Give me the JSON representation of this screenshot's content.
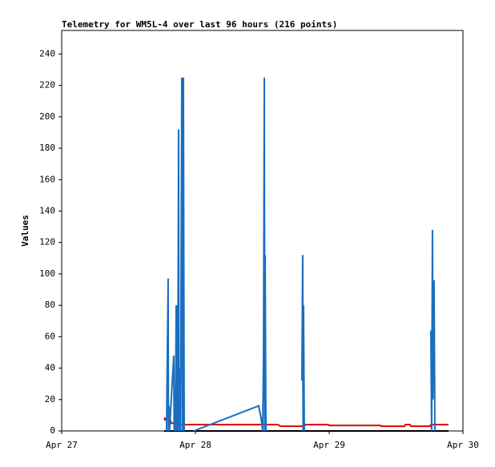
{
  "chart_data": {
    "type": "line",
    "title": "Telemetry for WM5L-4 over last 96 hours (216 points)",
    "y_label": "Values",
    "xlim": [
      0,
      3
    ],
    "xticks": [
      {
        "value": 0,
        "label": "Apr 27"
      },
      {
        "value": 1,
        "label": "Apr 28"
      },
      {
        "value": 2,
        "label": "Apr 29"
      },
      {
        "value": 3,
        "label": "Apr 30"
      }
    ],
    "ylim": [
      0,
      255
    ],
    "yticks": [
      0,
      20,
      40,
      60,
      80,
      100,
      120,
      140,
      160,
      180,
      200,
      220,
      240
    ],
    "series": [
      {
        "color": "#000000",
        "x": [
          0.766,
          2.892
        ],
        "values": [
          0,
          0
        ]
      },
      {
        "color": "#e00000",
        "x": [
          0.766,
          0.772,
          0.778,
          0.79,
          0.808,
          0.82,
          0.916,
          1.617,
          1.635,
          1.814,
          1.82,
          1.994,
          2.0,
          2.383,
          2.389,
          2.563,
          2.569,
          2.605,
          2.611,
          2.754,
          2.76,
          2.892
        ],
        "values": [
          7,
          8,
          7,
          8,
          8,
          5,
          4,
          4,
          3,
          3,
          4,
          4,
          3.5,
          3.5,
          3,
          3,
          4,
          4,
          3,
          3,
          4,
          4
        ]
      },
      {
        "color": "#1a6ec0",
        "x": [
          0.784,
          0.796,
          0.798,
          0.802,
          0.806,
          0.838,
          0.841,
          0.844,
          0.85,
          0.856,
          0.859,
          0.862,
          0.868,
          0.874,
          0.877,
          0.886,
          0.889,
          0.898,
          0.904,
          0.91,
          0.916,
          0.95,
          0.988,
          1.473,
          1.491,
          1.503,
          1.509,
          1.515,
          1.518,
          1.521,
          1.527,
          1.7,
          1.796,
          1.802,
          1.805,
          1.808,
          1.814,
          2.5,
          2.76,
          2.766,
          2.772,
          2.775,
          2.784,
          2.79
        ],
        "values": [
          0,
          97,
          0,
          16,
          0,
          48,
          0,
          26,
          0,
          80,
          0,
          80,
          0,
          192,
          0,
          40,
          0,
          225,
          0,
          225,
          0,
          null,
          0,
          16,
          8,
          0,
          48,
          225,
          0,
          112,
          0,
          null,
          32,
          112,
          0,
          80,
          0,
          null,
          64,
          0,
          128,
          20,
          96,
          0
        ]
      }
    ]
  }
}
